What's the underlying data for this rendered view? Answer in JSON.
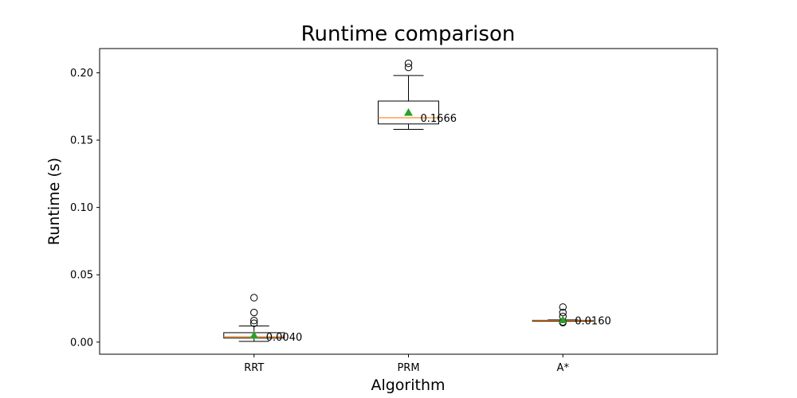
{
  "chart_data": {
    "type": "box",
    "title": "Runtime comparison",
    "xlabel": "Algorithm",
    "ylabel": "Runtime (s)",
    "ylim": [
      -0.009,
      0.218
    ],
    "yticks": [
      0.0,
      0.05,
      0.1,
      0.15,
      0.2
    ],
    "ytick_labels": [
      "0.00",
      "0.05",
      "0.10",
      "0.15",
      "0.20"
    ],
    "grid": false,
    "colors": {
      "box": "#000000",
      "median": "#ff7f0e",
      "mean": "#2ca02c",
      "outlier": "#000000"
    },
    "boxes": [
      {
        "category": "RRT",
        "whisker_low": 0.0005,
        "q1": 0.003,
        "median": 0.004,
        "q3": 0.007,
        "whisker_high": 0.012,
        "mean": 0.005,
        "outliers": [
          0.014,
          0.016,
          0.022,
          0.033
        ],
        "median_label": "0.0040"
      },
      {
        "category": "PRM",
        "whisker_low": 0.158,
        "q1": 0.162,
        "median": 0.1666,
        "q3": 0.179,
        "whisker_high": 0.198,
        "mean": 0.1705,
        "outliers": [
          0.204,
          0.207
        ],
        "median_label": "0.1666"
      },
      {
        "category": "A*",
        "whisker_low": 0.0155,
        "q1": 0.0155,
        "median": 0.016,
        "q3": 0.0162,
        "whisker_high": 0.0165,
        "mean": 0.0165,
        "outliers": [
          0.0145,
          0.015,
          0.019,
          0.022,
          0.026
        ],
        "median_label": "0.0160"
      }
    ]
  }
}
